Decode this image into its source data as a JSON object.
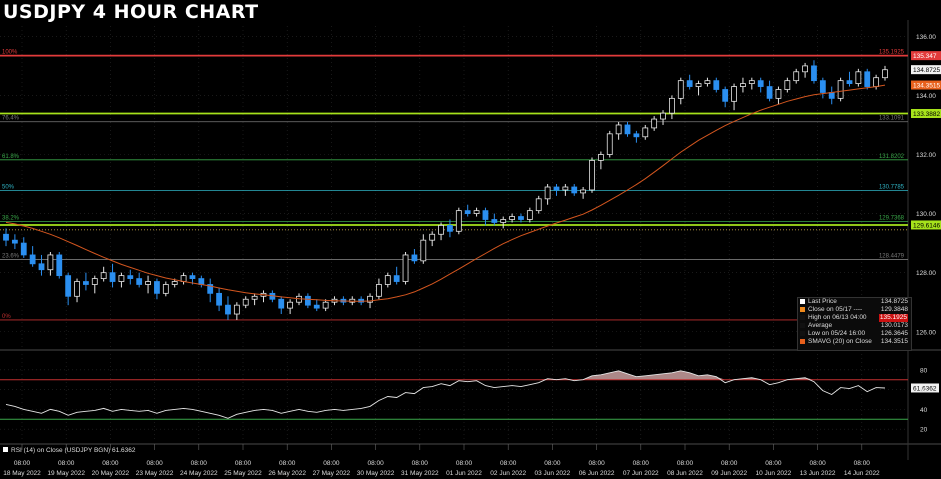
{
  "header": {
    "title": "USDJPY 4 HOUR CHART"
  },
  "colors": {
    "background": "#000000",
    "grid": "#2a2a2a",
    "up_candle": "#e6e6e6",
    "down_candle": "#2b8ff0",
    "sma": "#d4561f",
    "resistance": "#e23b3b",
    "support": "#a6e21b",
    "fib_gray": "#7a7a7a",
    "fib_green": "#3aa84a",
    "fib_cyan": "#2fb3c4",
    "fib_red": "#c23030",
    "rsi_line": "#e6e6e6",
    "rsi_fill": "#caa0a0"
  },
  "chart_data": [
    {
      "type": "candlestick",
      "y_axis_ticks": [
        "136.00",
        "134.00",
        "132.00",
        "130.00",
        "128.00",
        "126.00"
      ],
      "ylim": [
        125.45,
        136.35
      ],
      "x_tick_labels": [
        {
          "time": "08:00",
          "date": "18 May 2022"
        },
        {
          "time": "08:00",
          "date": "19 May 2022"
        },
        {
          "time": "08:00",
          "date": "20 May 2022"
        },
        {
          "time": "08:00",
          "date": "23 May 2022"
        },
        {
          "time": "08:00",
          "date": "24 May 2022"
        },
        {
          "time": "08:00",
          "date": "25 May 2022"
        },
        {
          "time": "08:00",
          "date": "26 May 2022"
        },
        {
          "time": "08:00",
          "date": "27 May 2022"
        },
        {
          "time": "08:00",
          "date": "30 May 2022"
        },
        {
          "time": "08:00",
          "date": "31 May 2022"
        },
        {
          "time": "08:00",
          "date": "01 Jun 2022"
        },
        {
          "time": "08:00",
          "date": "02 Jun 2022"
        },
        {
          "time": "08:00",
          "date": "03 Jun 2022"
        },
        {
          "time": "08:00",
          "date": "06 Jun 2022"
        },
        {
          "time": "08:00",
          "date": "07 Jun 2022"
        },
        {
          "time": "08:00",
          "date": "08 Jun 2022"
        },
        {
          "time": "08:00",
          "date": "09 Jun 2022"
        },
        {
          "time": "08:00",
          "date": "10 Jun 2022"
        },
        {
          "time": "08:00",
          "date": "13 Jun 2022"
        },
        {
          "time": "08:00",
          "date": "14 Jun 2022"
        }
      ],
      "candles": [
        [
          129.3,
          129.5,
          128.9,
          129.1
        ],
        [
          129.1,
          129.3,
          128.8,
          129.0
        ],
        [
          129.0,
          129.2,
          128.5,
          128.6
        ],
        [
          128.6,
          128.9,
          128.2,
          128.3
        ],
        [
          128.3,
          128.6,
          127.9,
          128.1
        ],
        [
          128.1,
          128.7,
          127.9,
          128.6
        ],
        [
          128.6,
          128.7,
          127.8,
          127.9
        ],
        [
          127.9,
          128.0,
          126.9,
          127.2
        ],
        [
          127.2,
          127.8,
          127.0,
          127.7
        ],
        [
          127.7,
          128.0,
          127.4,
          127.6
        ],
        [
          127.6,
          127.9,
          127.3,
          127.8
        ],
        [
          127.8,
          128.2,
          127.7,
          128.0
        ],
        [
          128.0,
          128.3,
          127.5,
          127.7
        ],
        [
          127.7,
          128.0,
          127.5,
          127.9
        ],
        [
          127.9,
          128.1,
          127.6,
          127.8
        ],
        [
          127.8,
          128.0,
          127.5,
          127.6
        ],
        [
          127.6,
          127.9,
          127.3,
          127.7
        ],
        [
          127.7,
          127.8,
          127.1,
          127.3
        ],
        [
          127.3,
          127.7,
          127.2,
          127.6
        ],
        [
          127.6,
          127.8,
          127.5,
          127.7
        ],
        [
          127.7,
          128.0,
          127.6,
          127.9
        ],
        [
          127.9,
          128.0,
          127.6,
          127.8
        ],
        [
          127.8,
          127.9,
          127.5,
          127.6
        ],
        [
          127.6,
          127.8,
          127.0,
          127.3
        ],
        [
          127.3,
          127.5,
          126.7,
          126.9
        ],
        [
          126.9,
          127.2,
          126.4,
          126.6
        ],
        [
          126.6,
          127.0,
          126.4,
          126.9
        ],
        [
          126.9,
          127.2,
          126.8,
          127.1
        ],
        [
          127.1,
          127.3,
          126.9,
          127.2
        ],
        [
          127.2,
          127.4,
          127.0,
          127.3
        ],
        [
          127.3,
          127.4,
          127.0,
          127.1
        ],
        [
          127.1,
          127.2,
          126.6,
          126.8
        ],
        [
          126.8,
          127.1,
          126.6,
          127.0
        ],
        [
          127.0,
          127.3,
          126.9,
          127.2
        ],
        [
          127.2,
          127.3,
          126.8,
          126.9
        ],
        [
          126.9,
          127.1,
          126.7,
          126.8
        ],
        [
          126.8,
          127.1,
          126.7,
          127.0
        ],
        [
          127.0,
          127.2,
          126.9,
          127.1
        ],
        [
          127.1,
          127.2,
          126.9,
          127.0
        ],
        [
          127.0,
          127.2,
          126.9,
          127.1
        ],
        [
          127.1,
          127.2,
          126.9,
          127.0
        ],
        [
          127.0,
          127.3,
          126.8,
          127.2
        ],
        [
          127.2,
          127.8,
          127.1,
          127.6
        ],
        [
          127.6,
          128.0,
          127.5,
          127.9
        ],
        [
          127.9,
          128.2,
          127.6,
          127.7
        ],
        [
          127.7,
          128.7,
          127.6,
          128.6
        ],
        [
          128.6,
          128.8,
          128.3,
          128.4
        ],
        [
          128.4,
          129.3,
          128.3,
          129.1
        ],
        [
          129.1,
          129.4,
          128.9,
          129.3
        ],
        [
          129.3,
          129.7,
          129.1,
          129.6
        ],
        [
          129.6,
          129.8,
          129.2,
          129.4
        ],
        [
          129.4,
          130.2,
          129.3,
          130.1
        ],
        [
          130.1,
          130.3,
          129.9,
          130.0
        ],
        [
          130.0,
          130.2,
          129.9,
          130.1
        ],
        [
          130.1,
          130.2,
          129.6,
          129.8
        ],
        [
          129.8,
          130.0,
          129.6,
          129.7
        ],
        [
          129.7,
          129.9,
          129.5,
          129.8
        ],
        [
          129.8,
          130.0,
          129.7,
          129.9
        ],
        [
          129.9,
          130.0,
          129.7,
          129.8
        ],
        [
          129.8,
          130.2,
          129.7,
          130.1
        ],
        [
          130.1,
          130.6,
          130.0,
          130.5
        ],
        [
          130.5,
          131.0,
          130.3,
          130.9
        ],
        [
          130.9,
          131.0,
          130.6,
          130.8
        ],
        [
          130.8,
          131.0,
          130.6,
          130.9
        ],
        [
          130.9,
          131.0,
          130.6,
          130.7
        ],
        [
          130.7,
          130.9,
          130.5,
          130.8
        ],
        [
          130.8,
          131.9,
          130.7,
          131.8
        ],
        [
          131.8,
          132.1,
          131.5,
          132.0
        ],
        [
          132.0,
          132.8,
          131.9,
          132.7
        ],
        [
          132.7,
          133.1,
          132.5,
          133.0
        ],
        [
          133.0,
          133.1,
          132.6,
          132.7
        ],
        [
          132.7,
          132.8,
          132.4,
          132.6
        ],
        [
          132.6,
          133.0,
          132.5,
          132.9
        ],
        [
          132.9,
          133.3,
          132.8,
          133.2
        ],
        [
          133.2,
          133.5,
          133.0,
          133.4
        ],
        [
          133.4,
          134.0,
          133.2,
          133.9
        ],
        [
          133.9,
          134.6,
          133.7,
          134.5
        ],
        [
          134.5,
          134.7,
          134.2,
          134.3
        ],
        [
          134.3,
          134.5,
          134.0,
          134.4
        ],
        [
          134.4,
          134.6,
          134.3,
          134.5
        ],
        [
          134.5,
          134.6,
          134.1,
          134.2
        ],
        [
          134.2,
          134.3,
          133.6,
          133.8
        ],
        [
          133.8,
          134.4,
          133.5,
          134.3
        ],
        [
          134.3,
          134.6,
          134.1,
          134.4
        ],
        [
          134.4,
          134.6,
          134.2,
          134.5
        ],
        [
          134.5,
          134.6,
          134.1,
          134.3
        ],
        [
          134.3,
          134.5,
          133.8,
          133.9
        ],
        [
          133.9,
          134.3,
          133.7,
          134.2
        ],
        [
          134.2,
          134.6,
          134.1,
          134.5
        ],
        [
          134.5,
          134.9,
          134.4,
          134.8
        ],
        [
          134.8,
          135.1,
          134.6,
          135.0
        ],
        [
          135.0,
          135.19,
          134.4,
          134.5
        ],
        [
          134.5,
          134.6,
          133.9,
          134.1
        ],
        [
          134.1,
          134.3,
          133.7,
          133.9
        ],
        [
          133.9,
          134.6,
          133.8,
          134.5
        ],
        [
          134.5,
          134.8,
          134.3,
          134.4
        ],
        [
          134.4,
          134.9,
          134.3,
          134.8
        ],
        [
          134.8,
          134.9,
          134.2,
          134.3
        ],
        [
          134.3,
          134.7,
          134.2,
          134.6
        ],
        [
          134.6,
          135.0,
          134.5,
          134.87
        ]
      ],
      "sma": {
        "label": "SMAVG (20)",
        "values": [
          129.7,
          129.65,
          129.58,
          129.5,
          129.4,
          129.3,
          129.18,
          129.05,
          128.92,
          128.78,
          128.65,
          128.52,
          128.4,
          128.28,
          128.18,
          128.08,
          127.98,
          127.9,
          127.82,
          127.76,
          127.7,
          127.65,
          127.6,
          127.55,
          127.48,
          127.42,
          127.37,
          127.32,
          127.28,
          127.25,
          127.22,
          127.18,
          127.15,
          127.12,
          127.1,
          127.08,
          127.06,
          127.05,
          127.04,
          127.03,
          127.03,
          127.04,
          127.08,
          127.12,
          127.18,
          127.25,
          127.35,
          127.48,
          127.62,
          127.78,
          127.95,
          128.12,
          128.3,
          128.48,
          128.65,
          128.82,
          128.98,
          129.12,
          129.25,
          129.36,
          129.47,
          129.58,
          129.68,
          129.78,
          129.88,
          129.98,
          130.12,
          130.28,
          130.45,
          130.62,
          130.8,
          130.98,
          131.18,
          131.4,
          131.62,
          131.85,
          132.08,
          132.28,
          132.48,
          132.65,
          132.82,
          132.98,
          133.12,
          133.25,
          133.38,
          133.5,
          133.6,
          133.7,
          133.8,
          133.88,
          133.96,
          134.02,
          134.06,
          134.1,
          134.14,
          134.18,
          134.22,
          134.26,
          134.3,
          134.35
        ]
      },
      "horizontal_lines": [
        {
          "value": 135.347,
          "label": "100%",
          "right_value": "135.1925",
          "tag": "135.347",
          "role": "resistance"
        },
        {
          "value": 133.3882,
          "label": "",
          "right_value": "",
          "tag": "133.3882",
          "role": "support"
        },
        {
          "value": 133.1091,
          "label": "76.4%",
          "right_value": "133.1091",
          "tag": "",
          "role": "fib_gray"
        },
        {
          "value": 131.8202,
          "label": "61.8%",
          "right_value": "131.8202",
          "tag": "",
          "role": "fib_green"
        },
        {
          "value": 130.7785,
          "label": "50%",
          "right_value": "130.7785",
          "tag": "",
          "role": "fib_cyan"
        },
        {
          "value": 129.7368,
          "label": "38.2%",
          "right_value": "129.7368",
          "tag": "",
          "role": "fib_green"
        },
        {
          "value": 129.6146,
          "label": "",
          "right_value": "",
          "tag": "129.6146",
          "role": "support"
        },
        {
          "value": 128.4479,
          "label": "23.6%",
          "right_value": "128.4479",
          "tag": "",
          "role": "fib_gray"
        },
        {
          "value": 126.4,
          "label": "0%",
          "right_value": "",
          "tag": "",
          "role": "fib_red"
        }
      ],
      "price_tags": [
        {
          "value": 134.8725,
          "text": "134.8725",
          "style": "white"
        },
        {
          "value": 134.3515,
          "text": "134.3515",
          "style": "orange"
        }
      ],
      "legend": [
        {
          "label": "Last Price",
          "value": "134.8725",
          "color": "#ffffff",
          "highlight": false
        },
        {
          "label": "Close on 05/17 ----",
          "value": "129.3848",
          "color": "#f08a1c",
          "highlight": false
        },
        {
          "label": "High on 06/13 04:00",
          "value": "135.1925",
          "color": "#111111",
          "highlight": true
        },
        {
          "label": "Average",
          "value": "130.0173",
          "color": "#111111",
          "highlight": false
        },
        {
          "label": "Low on 05/24 16:00",
          "value": "126.3645",
          "color": "#111111",
          "highlight": false
        },
        {
          "label": "SMAVG (20)  on Close",
          "value": "134.3515",
          "color": "#e8601c",
          "highlight": false
        }
      ]
    },
    {
      "type": "line",
      "name": "RSI (14)",
      "legend_text": "RSI (14)   on Close (USDJPY BGN) 61.6362",
      "y_axis_ticks": [
        "80",
        "60",
        "40",
        "20"
      ],
      "ylim": [
        7,
        96
      ],
      "overbought": 70,
      "oversold": 30,
      "current": "61.6362",
      "values": [
        45,
        43,
        40,
        38,
        36,
        40,
        38,
        34,
        37,
        38,
        39,
        41,
        38,
        40,
        39,
        38,
        39,
        36,
        39,
        40,
        41,
        40,
        38,
        36,
        34,
        31,
        35,
        37,
        39,
        40,
        39,
        36,
        38,
        40,
        38,
        37,
        39,
        40,
        39,
        40,
        41,
        43,
        49,
        53,
        52,
        57,
        56,
        62,
        63,
        66,
        64,
        69,
        68,
        69,
        64,
        62,
        63,
        64,
        63,
        65,
        67,
        71,
        70,
        71,
        69,
        70,
        74,
        75,
        77,
        79,
        76,
        73,
        74,
        75,
        76,
        77,
        79,
        77,
        74,
        75,
        73,
        67,
        70,
        71,
        72,
        70,
        65,
        67,
        70,
        71,
        72,
        68,
        59,
        55,
        62,
        61,
        64,
        58,
        62,
        61.6
      ]
    }
  ]
}
